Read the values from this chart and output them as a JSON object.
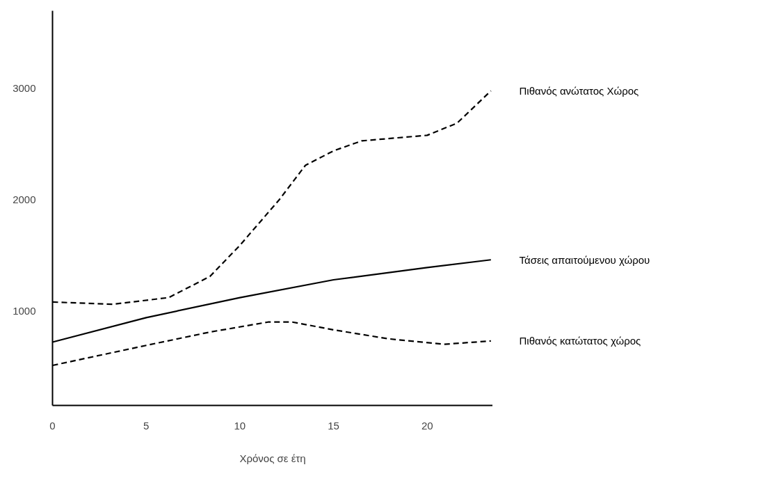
{
  "chart_data": {
    "type": "line",
    "xlabel": "Χρόνος σε έτη",
    "xlim": [
      0,
      23.5
    ],
    "ylim": [
      150,
      3700
    ],
    "xticks": [
      0,
      5,
      10,
      15,
      20
    ],
    "yticks": [
      1000,
      2000,
      3000
    ],
    "grid": false,
    "legend": false,
    "marker": "none",
    "series": [
      {
        "name": "Πιθανός ανώτατος Χώρος",
        "color": "#000000",
        "line_style": "dashed",
        "x": [
          0,
          3.2,
          6.2,
          8.4,
          10,
          12.1,
          13.5,
          15,
          16.5,
          20,
          21.6,
          23.4
        ],
        "values": [
          1080,
          1060,
          1120,
          1310,
          1590,
          2000,
          2310,
          2440,
          2530,
          2580,
          2690,
          2980
        ]
      },
      {
        "name": "Τάσεις απαιτούμενου χώρου",
        "color": "#000000",
        "line_style": "solid",
        "x": [
          0,
          5,
          10,
          15,
          20,
          23.4
        ],
        "values": [
          720,
          940,
          1120,
          1280,
          1390,
          1460
        ]
      },
      {
        "name": "Πιθανός κατώτατος χώρος",
        "color": "#000000",
        "line_style": "dashed",
        "x": [
          0,
          5,
          8.4,
          11.5,
          12.8,
          15,
          17.9,
          20.9,
          23.4
        ],
        "values": [
          510,
          690,
          810,
          900,
          900,
          830,
          750,
          700,
          730
        ]
      }
    ]
  }
}
